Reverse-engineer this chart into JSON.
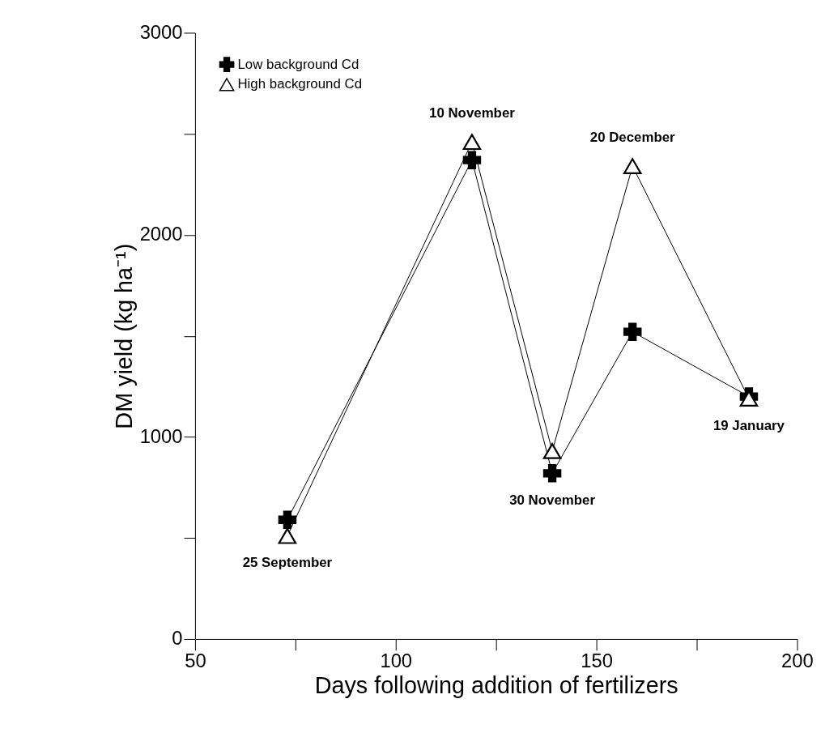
{
  "chart_data": {
    "type": "line",
    "xlabel": "Days following addition of fertilizers",
    "ylabel": "DM yield (kg ha⁻¹)",
    "x": [
      73,
      119,
      139,
      159,
      188
    ],
    "series": [
      {
        "name": "Low background Cd",
        "color": "#000000",
        "marker": "cross",
        "values": [
          590,
          2370,
          820,
          1520,
          1200
        ]
      },
      {
        "name": "High background Cd",
        "color": "#000000",
        "marker": "triangle",
        "values": [
          510,
          2460,
          930,
          2340,
          1190
        ]
      }
    ],
    "xlim": [
      50,
      200
    ],
    "xticks": [
      50,
      {
        "value": 75,
        "label": null
      },
      100,
      {
        "value": 125,
        "label": null
      },
      150,
      {
        "value": 175,
        "label": null
      },
      200
    ],
    "ylim": [
      0,
      3000
    ],
    "yticks": [
      0,
      {
        "value": 500,
        "label": null
      },
      1000,
      {
        "value": 1500,
        "label": null
      },
      2000,
      {
        "value": 2500,
        "label": null
      },
      3000
    ],
    "annotations": [
      {
        "text": "25 September",
        "x": 73,
        "y": 510
      },
      {
        "text": "10 November",
        "x": 119,
        "y": 2460
      },
      {
        "text": "30 November",
        "x": 139,
        "y": 820
      },
      {
        "text": "20 December",
        "x": 159,
        "y": 2340
      },
      {
        "text": "19 January",
        "x": 188,
        "y": 1190
      }
    ],
    "grid": false,
    "legend": "top left",
    "line_style": "solid"
  }
}
